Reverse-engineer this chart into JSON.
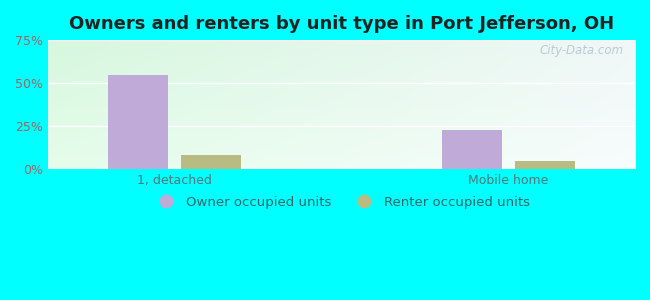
{
  "title": "Owners and renters by unit type in Port Jefferson, OH",
  "categories": [
    "1, detached",
    "Mobile home"
  ],
  "owner_values": [
    54.5,
    22.5
  ],
  "renter_values": [
    8.5,
    5.0
  ],
  "owner_color": "#c0aad8",
  "renter_color": "#b8bc82",
  "background_outer": "#00ffff",
  "ylim": [
    0,
    75
  ],
  "yticks": [
    0,
    25,
    50,
    75
  ],
  "yticklabels": [
    "0%",
    "25%",
    "50%",
    "75%"
  ],
  "legend_labels": [
    "Owner occupied units",
    "Renter occupied units"
  ],
  "title_fontsize": 13,
  "tick_fontsize": 9,
  "legend_fontsize": 9.5,
  "watermark": "City-Data.com",
  "bg_topleft": [
    0.84,
    0.97,
    0.87
  ],
  "bg_topright": [
    0.94,
    0.97,
    0.97
  ],
  "bg_bottomleft": [
    0.9,
    0.99,
    0.92
  ],
  "bg_bottomright": [
    0.97,
    0.99,
    0.99
  ]
}
